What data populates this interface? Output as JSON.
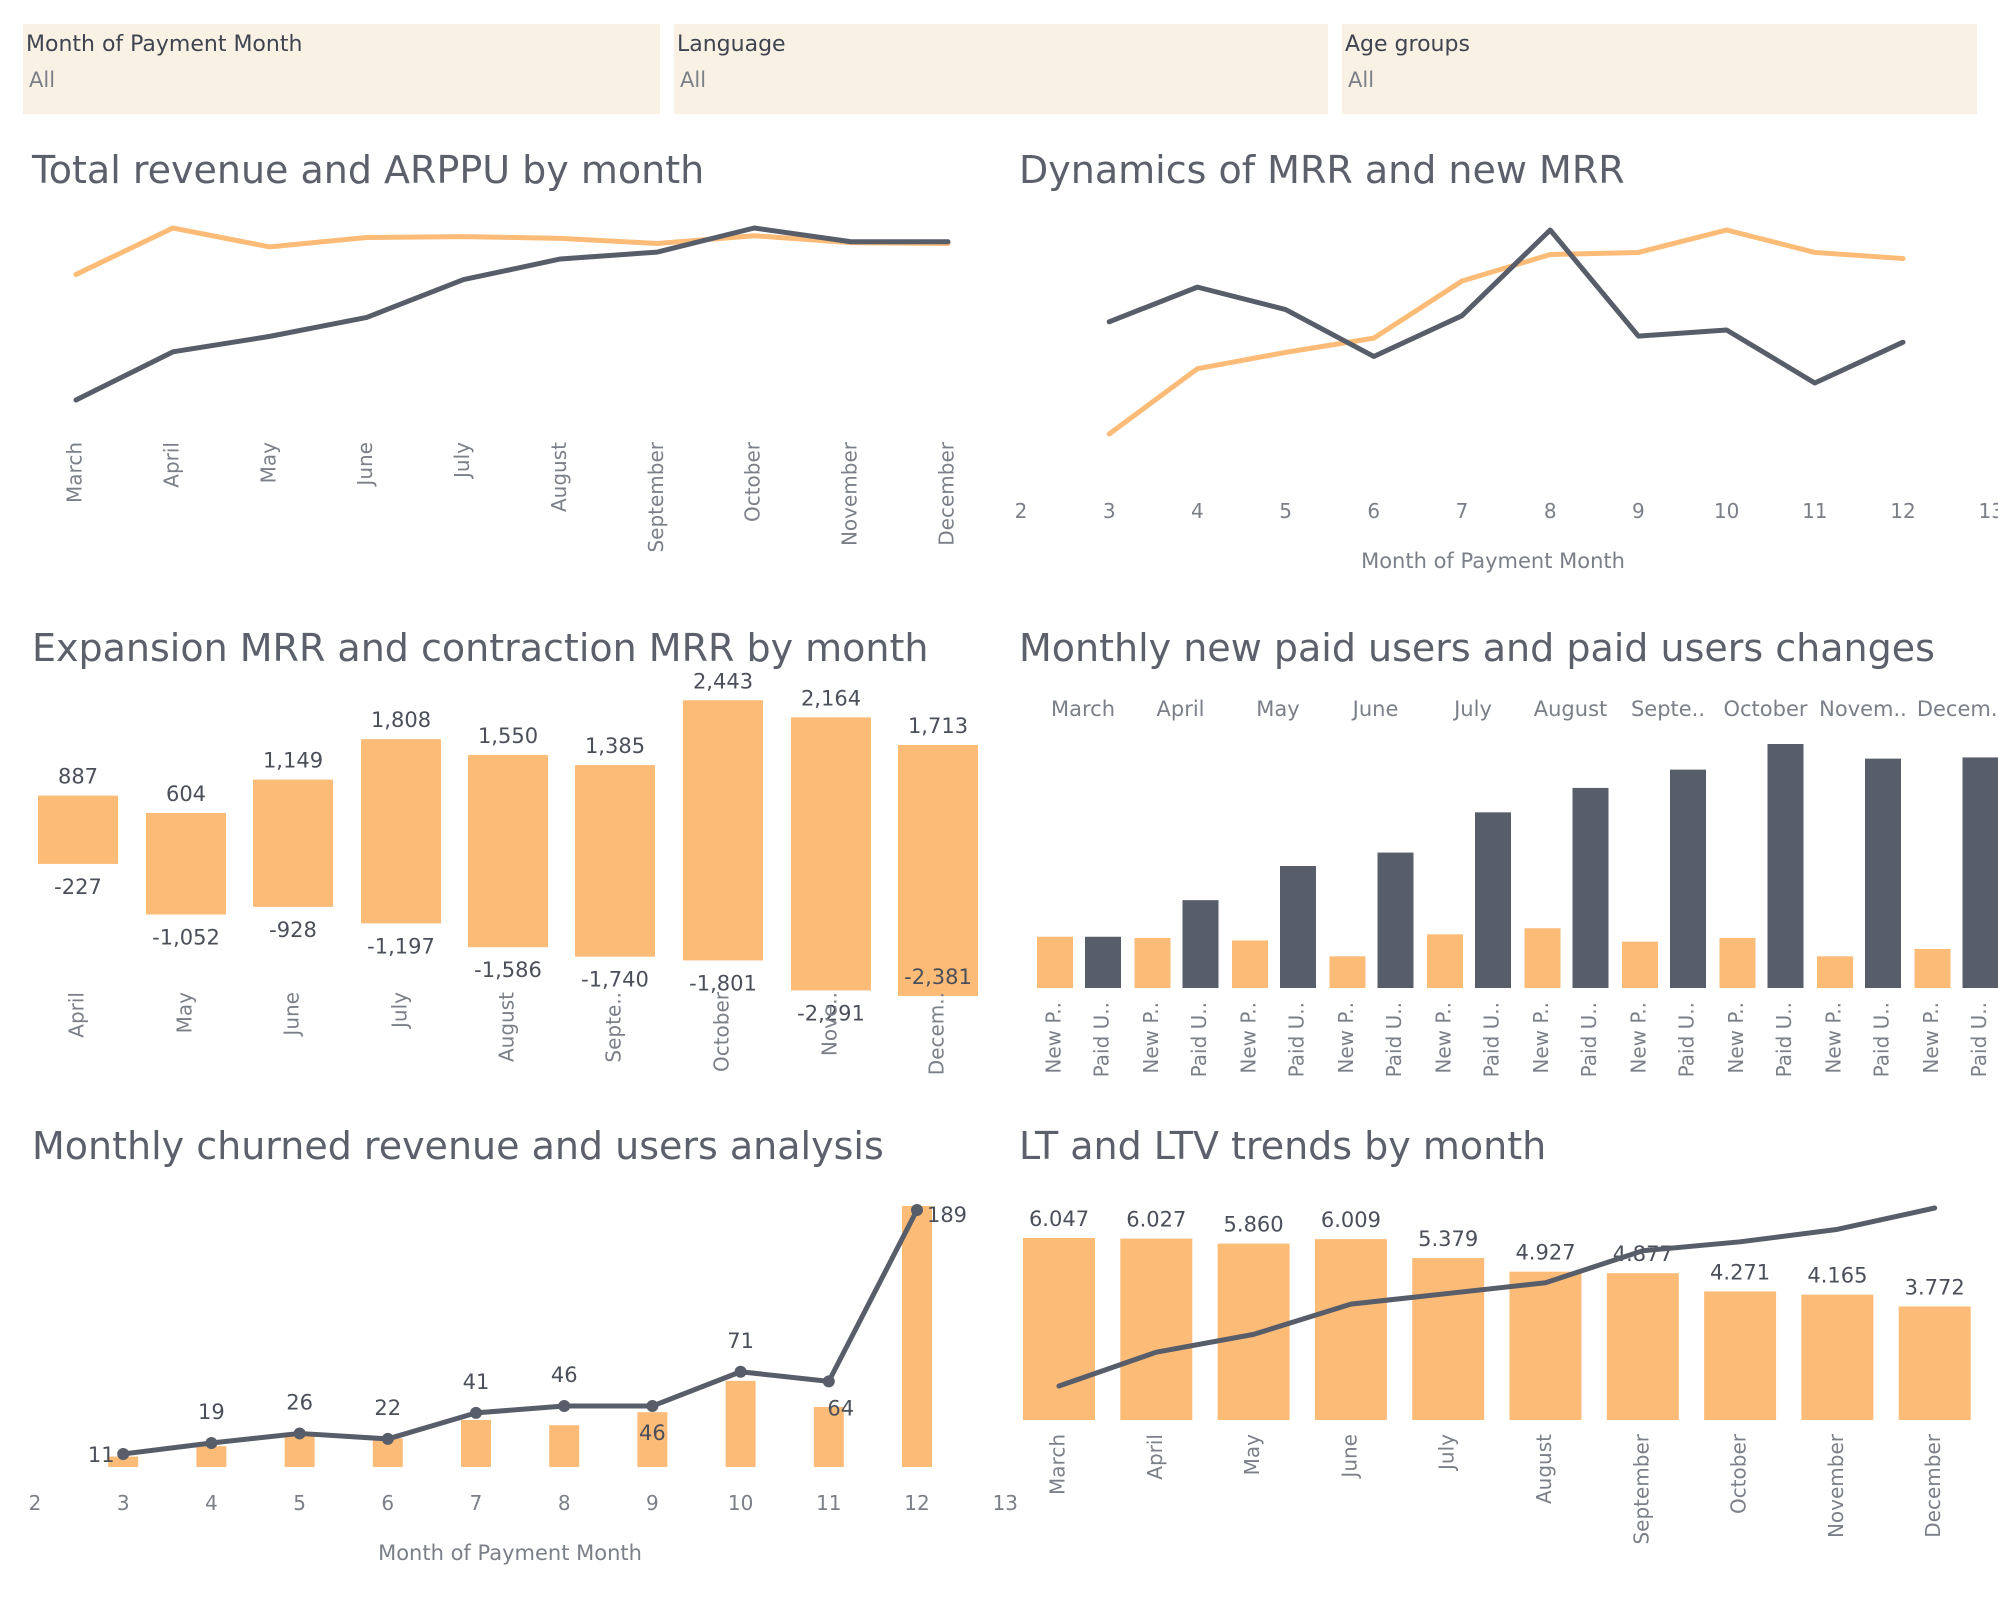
{
  "filters": [
    {
      "label": "Month of Payment Month",
      "value": "All"
    },
    {
      "label": "Language",
      "value": "All"
    },
    {
      "label": "Age groups",
      "value": "All"
    }
  ],
  "colors": {
    "orange": "#fdbb78",
    "dark": "#575d69",
    "text": "#5b606b",
    "tick": "#7a7f88",
    "label": "#4a4f5a",
    "filter_bg": "#f9f2e4"
  },
  "chart_data": [
    {
      "id": "revenue_arppu",
      "type": "line",
      "title": "Total revenue and ARPPU by month",
      "categories": [
        "March",
        "April",
        "May",
        "June",
        "July",
        "August",
        "September",
        "October",
        "November",
        "December"
      ],
      "series": [
        {
          "color": "orange",
          "values": [
            0.73,
            1.0,
            0.89,
            0.945,
            0.95,
            0.94,
            0.91,
            0.955,
            0.915,
            0.91
          ]
        },
        {
          "color": "dark",
          "values": [
            0.0,
            0.28,
            0.37,
            0.48,
            0.7,
            0.82,
            0.86,
            1.0,
            0.92,
            0.92
          ]
        }
      ]
    },
    {
      "id": "mrr_new_mrr",
      "type": "line",
      "title": "Dynamics of MRR and new MRR",
      "xlabel": "Month of Payment Month",
      "x_ticks": [
        2,
        3,
        4,
        5,
        6,
        7,
        8,
        9,
        10,
        11,
        12,
        13
      ],
      "x": [
        3,
        4,
        5,
        6,
        7,
        8,
        9,
        10,
        11,
        12
      ],
      "series": [
        {
          "color": "orange",
          "values": [
            0.0,
            0.32,
            0.4,
            0.47,
            0.75,
            0.88,
            0.89,
            1.0,
            0.89,
            0.86
          ]
        },
        {
          "color": "dark",
          "values": [
            0.55,
            0.72,
            0.61,
            0.38,
            0.58,
            1.0,
            0.48,
            0.51,
            0.25,
            0.45
          ]
        }
      ]
    },
    {
      "id": "expansion_contraction",
      "type": "bar",
      "title": "Expansion MRR and contraction MRR by month",
      "categories": [
        "April",
        "May",
        "June",
        "July",
        "August",
        "Septe..",
        "October",
        "Nove..",
        "Decem.."
      ],
      "expansion": [
        887,
        604,
        1149,
        1808,
        1550,
        1385,
        2443,
        2164,
        1713
      ],
      "contraction": [
        -227,
        -1052,
        -928,
        -1197,
        -1586,
        -1740,
        -1801,
        -2291,
        -2381
      ],
      "expansion_labels": [
        "887",
        "604",
        "1,149",
        "1,808",
        "1,550",
        "1,385",
        "2,443",
        "2,164",
        "1,713"
      ],
      "contraction_labels": [
        "-227",
        "-1,052",
        "-928",
        "-1,197",
        "-1,586",
        "-1,740",
        "-1,801",
        "-2,291",
        "-2,381"
      ]
    },
    {
      "id": "new_paid_users",
      "type": "bar",
      "title": "Monthly new paid users and paid users changes",
      "months": [
        "March",
        "April",
        "May",
        "June",
        "July",
        "August",
        "Septe..",
        "October",
        "Novem..",
        "Decem.."
      ],
      "sub_labels": [
        "New P..",
        "Paid U.."
      ],
      "new_paid": [
        0.21,
        0.205,
        0.195,
        0.13,
        0.22,
        0.245,
        0.19,
        0.205,
        0.13,
        0.16
      ],
      "paid_changes": [
        0.21,
        0.36,
        0.5,
        0.555,
        0.72,
        0.82,
        0.895,
        1.0,
        0.94,
        0.945
      ]
    },
    {
      "id": "churned",
      "type": "bar",
      "title": "Monthly churned revenue and users analysis",
      "xlabel": "Month of Payment Month",
      "x_ticks": [
        2,
        3,
        4,
        5,
        6,
        7,
        8,
        9,
        10,
        11,
        12,
        13
      ],
      "x": [
        3,
        4,
        5,
        6,
        7,
        8,
        9,
        10,
        11,
        12
      ],
      "bars": [
        0.04,
        0.08,
        0.12,
        0.11,
        0.18,
        0.16,
        0.21,
        0.33,
        0.23,
        1.0
      ],
      "line": [
        11,
        19,
        26,
        22,
        41,
        46,
        46,
        71,
        64,
        189
      ],
      "line_labels": [
        "11",
        "19",
        "26",
        "22",
        "41",
        "46",
        "46",
        "71",
        "64",
        "189"
      ]
    },
    {
      "id": "lt_ltv",
      "type": "bar",
      "title": "LT and LTV trends by month",
      "categories": [
        "March",
        "April",
        "May",
        "June",
        "July",
        "August",
        "September",
        "October",
        "November",
        "December"
      ],
      "bars": [
        6.047,
        6.027,
        5.86,
        6.009,
        5.379,
        4.927,
        4.877,
        4.271,
        4.165,
        3.772
      ],
      "bar_labels": [
        "6.047",
        "6.027",
        "5.860",
        "6.009",
        "5.379",
        "4.927",
        "4.877",
        "4.271",
        "4.165",
        "3.772"
      ],
      "line": [
        0.0,
        0.19,
        0.29,
        0.46,
        0.52,
        0.58,
        0.76,
        0.81,
        0.88,
        1.0
      ]
    }
  ]
}
